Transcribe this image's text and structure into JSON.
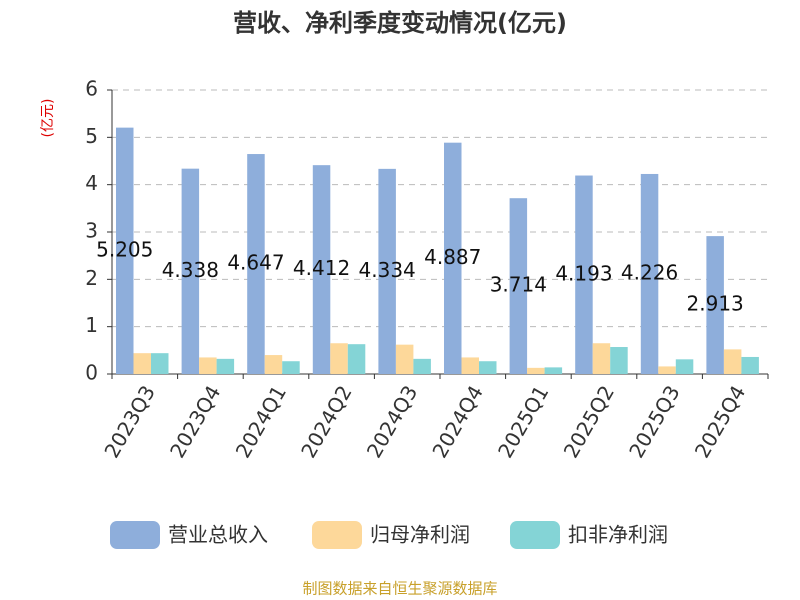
{
  "chart_data": {
    "type": "bar",
    "title": "营收、净利季度变动情况(亿元)",
    "y_axis_label": "(亿元)",
    "source": "制图数据来自恒生聚源数据库",
    "categories": [
      "2023Q3",
      "2023Q4",
      "2024Q1",
      "2024Q2",
      "2024Q3",
      "2024Q4",
      "2025Q1",
      "2025Q2",
      "2025Q3",
      "2025Q4"
    ],
    "series": [
      {
        "name": "营业总收入",
        "color": "#8eaedb",
        "values": [
          5.205,
          4.338,
          4.647,
          4.412,
          4.334,
          4.887,
          3.714,
          4.193,
          4.226,
          2.913
        ],
        "show_labels": true
      },
      {
        "name": "归母净利润",
        "color": "#fdd89a",
        "values": [
          0.44,
          0.35,
          0.4,
          0.65,
          0.62,
          0.35,
          0.13,
          0.65,
          0.16,
          0.52
        ]
      },
      {
        "name": "扣非净利润",
        "color": "#84d4d6",
        "values": [
          0.44,
          0.32,
          0.27,
          0.63,
          0.32,
          0.27,
          0.14,
          0.57,
          0.31,
          0.36
        ]
      }
    ],
    "ylim": [
      0,
      6
    ],
    "yticks": [
      0,
      1,
      2,
      3,
      4,
      5,
      6
    ],
    "grid": true
  }
}
